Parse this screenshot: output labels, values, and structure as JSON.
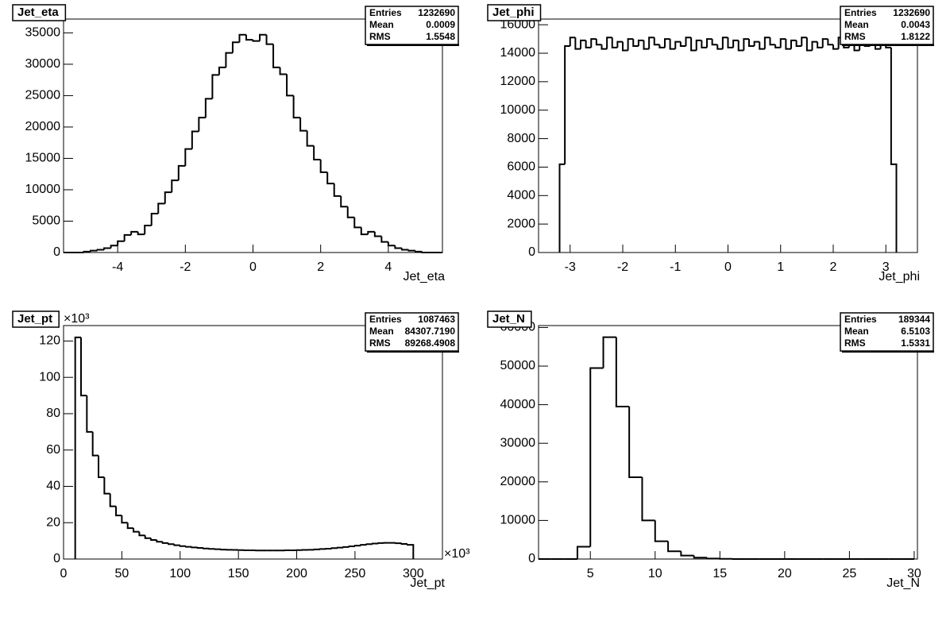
{
  "chart_data": [
    {
      "type": "histogram",
      "title": "Jet_eta",
      "x_label": "Jet_eta",
      "stats": [
        {
          "name": "Entries",
          "value": 1232690
        },
        {
          "name": "Mean",
          "value": 0.0009
        },
        {
          "name": "RMS",
          "value": 1.5548
        }
      ],
      "bins": [
        -5.6,
        -5.4,
        -5.2,
        -5,
        -4.8,
        -4.6,
        -4.4,
        -4.2,
        -4,
        -3.8,
        -3.6,
        -3.4,
        -3.2,
        -3,
        -2.8,
        -2.6,
        -2.4,
        -2.2,
        -2,
        -1.8,
        -1.6,
        -1.4,
        -1.2,
        -1,
        -0.8,
        -0.6,
        -0.4,
        -0.2,
        0,
        0.2,
        0.4,
        0.6,
        0.8,
        1,
        1.2,
        1.4,
        1.6,
        1.8,
        2,
        2.2,
        2.4,
        2.6,
        2.8,
        3,
        3.2,
        3.4,
        3.6,
        3.8,
        4,
        4.2,
        4.4,
        4.6,
        4.8,
        5,
        5.2,
        5.4,
        5.6
      ],
      "values": [
        0,
        0,
        0,
        150,
        300,
        450,
        700,
        1100,
        1800,
        2800,
        3300,
        2900,
        4300,
        6200,
        7800,
        9600,
        11500,
        13800,
        16500,
        19300,
        21500,
        24500,
        28300,
        29500,
        31800,
        33500,
        34700,
        33900,
        33700,
        34700,
        33200,
        29500,
        28400,
        25000,
        21500,
        19400,
        17000,
        14800,
        12800,
        11000,
        9000,
        7300,
        5600,
        4000,
        2900,
        3300,
        2600,
        1700,
        1100,
        700,
        450,
        300,
        150,
        0,
        0,
        0
      ],
      "color": "#000000",
      "xlim": [
        -5.6,
        5.6
      ],
      "ylim": [
        0,
        37200
      ],
      "xticks": [
        -4,
        -2,
        0,
        2,
        4
      ],
      "yticks": [
        0,
        5000,
        10000,
        15000,
        20000,
        25000,
        30000,
        35000
      ]
    },
    {
      "type": "histogram",
      "title": "Jet_phi",
      "x_label": "Jet_phi",
      "stats": [
        {
          "name": "Entries",
          "value": 1232690
        },
        {
          "name": "Mean",
          "value": 0.0043
        },
        {
          "name": "RMS",
          "value": 1.8122
        }
      ],
      "bins": [
        -3.2,
        -3.1,
        -3,
        -2.9,
        -2.8,
        -2.7,
        -2.6,
        -2.5,
        -2.4,
        -2.3,
        -2.2,
        -2.1,
        -2,
        -1.9,
        -1.8,
        -1.7,
        -1.6,
        -1.5,
        -1.4,
        -1.3,
        -1.2,
        -1.1,
        -1,
        -0.9,
        -0.8,
        -0.7,
        -0.6,
        -0.5,
        -0.4,
        -0.3,
        -0.2,
        -0.1,
        0,
        0.1,
        0.2,
        0.3,
        0.4,
        0.5,
        0.6,
        0.7,
        0.8,
        0.9,
        1,
        1.1,
        1.2,
        1.3,
        1.4,
        1.5,
        1.6,
        1.7,
        1.8,
        1.9,
        2,
        2.1,
        2.2,
        2.3,
        2.4,
        2.5,
        2.6,
        2.7,
        2.8,
        2.9,
        3,
        3.1,
        3.2
      ],
      "values": [
        6200,
        14500,
        15100,
        14300,
        14900,
        14400,
        15000,
        14600,
        14300,
        15100,
        14400,
        14800,
        14200,
        15000,
        14500,
        14900,
        14300,
        15100,
        14600,
        14400,
        15000,
        14300,
        14800,
        14500,
        15100,
        14200,
        14900,
        14400,
        15000,
        14600,
        14300,
        15100,
        14400,
        14900,
        14200,
        15000,
        14500,
        14800,
        14300,
        15100,
        14600,
        14400,
        15000,
        14300,
        14900,
        14500,
        15100,
        14200,
        14800,
        14400,
        15000,
        14600,
        14300,
        15100,
        14400,
        14900,
        14200,
        15000,
        14500,
        14800,
        14300,
        15000,
        14400,
        6200
      ],
      "color": "#000000",
      "xlim": [
        -3.6,
        3.6
      ],
      "ylim": [
        0,
        16400
      ],
      "xticks": [
        -3,
        -2,
        -1,
        0,
        1,
        2,
        3
      ],
      "yticks": [
        0,
        2000,
        4000,
        6000,
        8000,
        10000,
        12000,
        14000,
        16000
      ]
    },
    {
      "type": "histogram",
      "title": "Jet_pt",
      "x_label": "Jet_pt",
      "x_exponent": "×10³",
      "y_exponent": "×10³",
      "stats": [
        {
          "name": "Entries",
          "value": 1087463
        },
        {
          "name": "Mean",
          "value": {
            "value": 84307.719,
            "label": "84307.7190"
          }
        },
        {
          "name": "RMS",
          "value": {
            "value": 89268.4908,
            "label": "89268.4908"
          }
        }
      ],
      "bins": [
        10,
        15,
        20,
        25,
        30,
        35,
        40,
        45,
        50,
        55,
        60,
        65,
        70,
        75,
        80,
        85,
        90,
        95,
        100,
        105,
        110,
        115,
        120,
        125,
        130,
        135,
        140,
        145,
        150,
        155,
        160,
        165,
        170,
        175,
        180,
        185,
        190,
        195,
        200,
        205,
        210,
        215,
        220,
        225,
        230,
        235,
        240,
        245,
        250,
        255,
        260,
        265,
        270,
        275,
        280,
        285,
        290,
        295,
        300
      ],
      "values": [
        122,
        90,
        70,
        57,
        45,
        36,
        29,
        24,
        20,
        17,
        15,
        13,
        11.5,
        10.5,
        9.5,
        8.8,
        8.2,
        7.6,
        7.1,
        6.7,
        6.4,
        6.1,
        5.8,
        5.6,
        5.4,
        5.2,
        5.1,
        5,
        4.9,
        4.8,
        4.8,
        4.7,
        4.7,
        4.7,
        4.7,
        4.7,
        4.8,
        4.8,
        4.9,
        5,
        5.1,
        5.3,
        5.5,
        5.7,
        6,
        6.3,
        6.6,
        7,
        7.4,
        7.8,
        8.2,
        8.5,
        8.8,
        8.9,
        8.9,
        8.7,
        8.3,
        7.8
      ],
      "color": "#000000",
      "xlim": [
        0,
        325
      ],
      "ylim": [
        0,
        128.5
      ],
      "xticks": [
        0,
        50,
        100,
        150,
        200,
        250,
        300
      ],
      "yticks": [
        0,
        20,
        40,
        60,
        80,
        100,
        120
      ]
    },
    {
      "type": "histogram",
      "title": "Jet_N",
      "x_label": "Jet_N",
      "stats": [
        {
          "name": "Entries",
          "value": 189344
        },
        {
          "name": "Mean",
          "value": 6.5103
        },
        {
          "name": "RMS",
          "value": 1.5331
        }
      ],
      "bins": [
        1,
        2,
        3,
        4,
        5,
        6,
        7,
        8,
        9,
        10,
        11,
        12,
        13,
        14,
        15,
        16,
        17,
        18,
        19,
        20,
        21,
        22,
        23,
        24,
        25,
        26,
        27,
        28,
        29,
        30
      ],
      "values": [
        0,
        0,
        0,
        3200,
        49500,
        57500,
        39500,
        21200,
        10000,
        4600,
        2000,
        900,
        350,
        130,
        50,
        0,
        0,
        0,
        0,
        0,
        0,
        0,
        0,
        0,
        0,
        0,
        0,
        0,
        0
      ],
      "color": "#000000",
      "xlim": [
        1,
        30.25
      ],
      "ylim": [
        0,
        60500
      ],
      "xticks": [
        5,
        10,
        15,
        20,
        25,
        30
      ],
      "yticks": [
        0,
        10000,
        20000,
        30000,
        40000,
        50000,
        60000
      ]
    }
  ]
}
